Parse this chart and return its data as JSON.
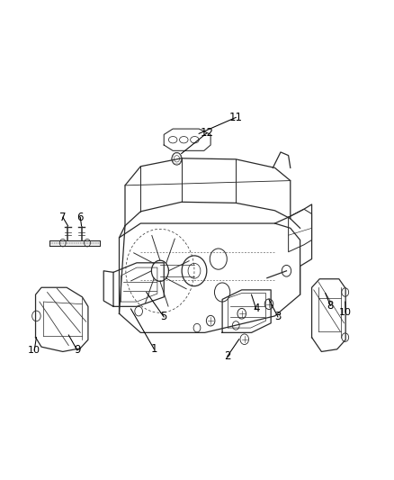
{
  "background_color": "#ffffff",
  "line_color": "#2a2a2a",
  "label_color": "#000000",
  "figsize": [
    4.38,
    5.33
  ],
  "dpi": 100
}
